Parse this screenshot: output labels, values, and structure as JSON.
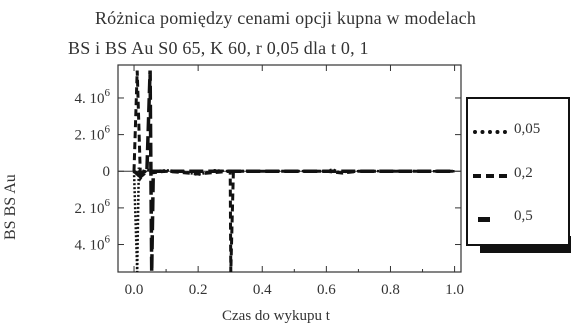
{
  "chart_data": {
    "type": "line",
    "title": "Różnica pomiędzy cenami opcji kupna w modelach",
    "subtitle": "BS i BS  Au  S0  65, K  60, r  0,05  dla t  0, 1",
    "xlabel": "Czas do wykupu  t",
    "ylabel": "BS  BS  Au",
    "xlim": [
      -0.05,
      1.02
    ],
    "ylim": [
      -5.5,
      5.8
    ],
    "x_ticks": [
      0.0,
      0.2,
      0.4,
      0.6,
      0.8,
      1.0
    ],
    "x_tick_labels": [
      "0.0",
      "0.2",
      "0.4",
      "0.6",
      "0.8",
      "1.0"
    ],
    "y_ticks": [
      4,
      2,
      0,
      -2,
      -4
    ],
    "y_tick_labels": [
      {
        "pre": "4.",
        "base": "10",
        "exp": "6"
      },
      {
        "pre": "2.",
        "base": "10",
        "exp": "6"
      },
      {
        "pre": "0",
        "base": "",
        "exp": ""
      },
      {
        "pre": "2.",
        "base": "10",
        "exp": "6"
      },
      {
        "pre": "4.",
        "base": "10",
        "exp": "6"
      }
    ],
    "grid": false,
    "legend_position": "right",
    "series": [
      {
        "name": "0,05",
        "style": "dotted",
        "x": [
          0.0,
          0.01,
          0.015,
          0.02,
          0.04,
          0.06,
          0.1,
          0.15,
          0.2,
          0.25,
          0.3,
          0.35,
          0.4,
          0.5,
          0.6,
          0.62,
          0.64,
          0.7,
          0.8,
          0.9,
          1.0
        ],
        "y": [
          0.0,
          -5.5,
          0.2,
          -0.4,
          0.1,
          0.0,
          0.05,
          0.0,
          -0.2,
          0.05,
          0.0,
          0.02,
          0.0,
          0.01,
          0.0,
          0.1,
          -0.05,
          0.0,
          0.01,
          0.0,
          0.0
        ]
      },
      {
        "name": "0,2",
        "style": "dashed",
        "x": [
          0.0,
          0.01,
          0.02,
          0.03,
          0.05,
          0.1,
          0.2,
          0.3,
          0.302,
          0.31,
          0.4,
          0.6,
          0.65,
          0.7,
          0.8,
          1.0
        ],
        "y": [
          0.0,
          5.5,
          -0.3,
          0.0,
          -0.1,
          0.0,
          -0.15,
          0.0,
          -5.5,
          0.0,
          0.0,
          0.0,
          -0.1,
          0.0,
          0.0,
          0.0
        ]
      },
      {
        "name": "0,5",
        "style": "long-dash",
        "x": [
          0.0,
          0.02,
          0.04,
          0.05,
          0.055,
          0.06,
          0.1,
          0.2,
          0.4,
          0.6,
          0.8,
          1.0
        ],
        "y": [
          0.0,
          -0.3,
          0.0,
          5.5,
          -5.5,
          0.0,
          0.0,
          0.0,
          0.0,
          0.0,
          0.0,
          0.0
        ]
      }
    ]
  },
  "legend": [
    {
      "symbol": "  ",
      "label": "0,05"
    },
    {
      "symbol": "  ",
      "label": "0,2"
    },
    {
      "symbol": "  ",
      "label": "0,5"
    }
  ]
}
